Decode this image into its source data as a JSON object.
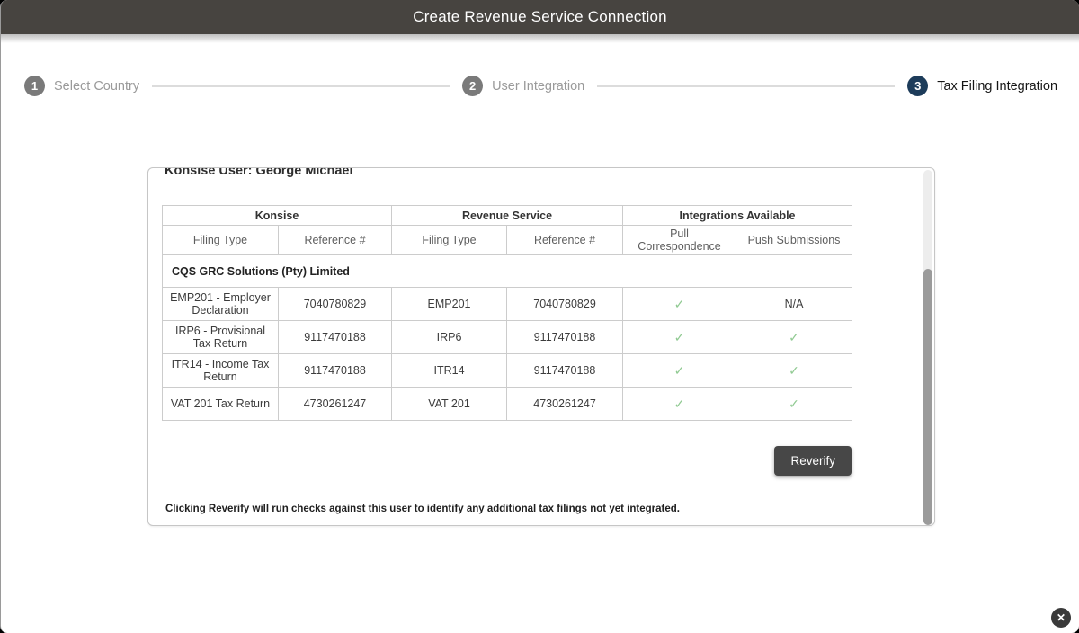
{
  "modal": {
    "title": "Create Revenue Service Connection"
  },
  "stepper": {
    "steps": [
      {
        "number": "1",
        "label": "Select Country",
        "active": false
      },
      {
        "number": "2",
        "label": "User Integration",
        "active": false
      },
      {
        "number": "3",
        "label": "Tax Filing Integration",
        "active": true
      }
    ]
  },
  "card": {
    "user_label": "Konsise User: George Michael",
    "table": {
      "group_headers": [
        "Konsise",
        "Revenue Service",
        "Integrations Available"
      ],
      "sub_headers": [
        "Filing Type",
        "Reference #",
        "Filing Type",
        "Reference #",
        "Pull Correspondence",
        "Push Submissions"
      ],
      "company": "CQS GRC Solutions (Pty) Limited",
      "rows": [
        {
          "konsise_filing_type": "EMP201 - Employer Declaration",
          "konsise_reference": "7040780829",
          "rs_filing_type": "EMP201",
          "rs_reference": "7040780829",
          "pull_correspondence": "✓",
          "push_submissions": "N/A"
        },
        {
          "konsise_filing_type": "IRP6 - Provisional Tax Return",
          "konsise_reference": "9117470188",
          "rs_filing_type": "IRP6",
          "rs_reference": "9117470188",
          "pull_correspondence": "✓",
          "push_submissions": "✓"
        },
        {
          "konsise_filing_type": "ITR14 - Income Tax Return",
          "konsise_reference": "9117470188",
          "rs_filing_type": "ITR14",
          "rs_reference": "9117470188",
          "pull_correspondence": "✓",
          "push_submissions": "✓"
        },
        {
          "konsise_filing_type": "VAT 201 Tax Return",
          "konsise_reference": "4730261247",
          "rs_filing_type": "VAT 201",
          "rs_reference": "4730261247",
          "pull_correspondence": "✓",
          "push_submissions": "✓"
        }
      ]
    },
    "reverify_label": "Reverify",
    "note": "Clicking Reverify will run checks against this user to identify any additional tax filings not yet integrated."
  },
  "icons": {
    "close": "✕"
  },
  "colors": {
    "header_bg": "#474440",
    "active_step": "#1d3c5a",
    "inactive_step": "#7a7a7a",
    "check_green": "#90ca92",
    "reverify_bg": "#474747"
  }
}
